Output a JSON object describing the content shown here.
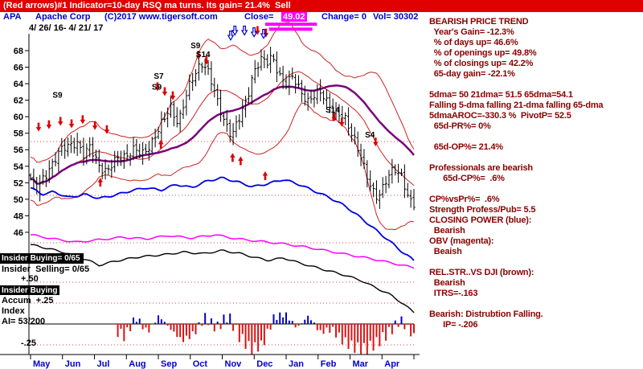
{
  "header": {
    "banner": "(Red arrows)#1 Indicator=10-day RSQ ma turns. Its gain= 21.4%  Sell",
    "ticker": "APA",
    "company": "Apache Corp",
    "copyright": "(C)2017 www.tigersoft.com",
    "close_label": "Close=",
    "close_value": "49.02",
    "change_text": "Change= 0",
    "volume_text": "Vol= 30302",
    "date_range": "4/ 26/ 16- 4/ 21/ 17"
  },
  "right_panel": {
    "lines": [
      "BEARISH PRICE TREND",
      "  Year's Gain= -12.3%",
      "  % of days up= 46.6%",
      "  % of openings up= 49.8%",
      "  % of closings up= 42.2%",
      "  65-day gain= -22.1%",
      "",
      "5dma= 50 21dma= 51.5 65dma=54.1",
      "Falling 5-dma falling 21-dma falling 65-dma",
      "5dmaAROC=-330.3 %  PivotP= 52.5",
      "  65d-PR%= 0%",
      "",
      "  65d-OP%= 21.4%",
      "",
      "Professionals are bearish",
      "      65d-CP%=  .6%",
      "",
      "CP%vsPr%=  .6%",
      "Strength Profess/Pub= 5.5",
      "CLOSING POWER (blue):",
      "  Bearish",
      "OBV (magenta):",
      "  Beaish",
      "",
      "REL.STR..VS DJI (brown):",
      "  Bearish",
      "  ITRS=-.163",
      "",
      "Bearish: Distrubtion Falling.",
      "      IP= -.206"
    ]
  },
  "left_overlays": {
    "insider_buying_bar": "Insider Buying= 0/65",
    "insider_selling": "Insider  Selling= 0/65",
    "plus50": "+.50",
    "insider_buying_label": "Insider Buying",
    "accum_plus25": "Accum  +.25",
    "index_label": "Index",
    "ai_value": "AI= 53/200",
    "minus25": "-.25"
  },
  "chart_data": {
    "type": "ohlc",
    "title": "APA Apache Corp daily OHLC 4/26/16-4/21/17 with 21/65-day moving averages, trading bands, Closing Power, OBV, Relative Strength and Accumulation Index",
    "ylim": [
      46,
      68
    ],
    "y_ticks": [
      68,
      66,
      64,
      62,
      60,
      58,
      56,
      54,
      52,
      50,
      48,
      46
    ],
    "months": [
      "May",
      "Jun",
      "Jul",
      "Aug",
      "Sep",
      "Oct",
      "Nov",
      "Dec",
      "Jan",
      "Feb",
      "Mar",
      "Apr"
    ],
    "last_close": 49.02,
    "price_weekly_close": [
      [
        0.0,
        52.5
      ],
      [
        0.015,
        50.9
      ],
      [
        0.05,
        54.0
      ],
      [
        0.075,
        55.6
      ],
      [
        0.1,
        56.5
      ],
      [
        0.12,
        57.2
      ],
      [
        0.14,
        55.1
      ],
      [
        0.155,
        56.2
      ],
      [
        0.18,
        54.2
      ],
      [
        0.2,
        53.3
      ],
      [
        0.23,
        55.0
      ],
      [
        0.27,
        56.0
      ],
      [
        0.29,
        55.2
      ],
      [
        0.31,
        56.6
      ],
      [
        0.33,
        58.2
      ],
      [
        0.35,
        59.6
      ],
      [
        0.365,
        61.2
      ],
      [
        0.385,
        59.4
      ],
      [
        0.4,
        61.6
      ],
      [
        0.415,
        63.6
      ],
      [
        0.43,
        65.2
      ],
      [
        0.445,
        66.8
      ],
      [
        0.46,
        66.0
      ],
      [
        0.475,
        63.6
      ],
      [
        0.49,
        61.2
      ],
      [
        0.51,
        59.2
      ],
      [
        0.525,
        57.9
      ],
      [
        0.545,
        59.6
      ],
      [
        0.565,
        62.2
      ],
      [
        0.58,
        65.4
      ],
      [
        0.6,
        67.0
      ],
      [
        0.615,
        66.2
      ],
      [
        0.63,
        67.3
      ],
      [
        0.65,
        65.2
      ],
      [
        0.665,
        63.9
      ],
      [
        0.685,
        64.6
      ],
      [
        0.705,
        63.2
      ],
      [
        0.725,
        61.9
      ],
      [
        0.745,
        62.6
      ],
      [
        0.76,
        62.8
      ],
      [
        0.78,
        61.6
      ],
      [
        0.8,
        60.2
      ],
      [
        0.82,
        59.6
      ],
      [
        0.845,
        57.5
      ],
      [
        0.86,
        55.5
      ],
      [
        0.875,
        52.8
      ],
      [
        0.89,
        51.0
      ],
      [
        0.905,
        50.4
      ],
      [
        0.93,
        52.6
      ],
      [
        0.95,
        53.4
      ],
      [
        0.97,
        52.8
      ],
      [
        0.985,
        50.5
      ],
      [
        1.0,
        49.0
      ]
    ],
    "closing_power": [
      [
        0.0,
        51.4
      ],
      [
        0.03,
        50.6
      ],
      [
        0.06,
        50.9
      ],
      [
        0.1,
        50.2
      ],
      [
        0.14,
        50.6
      ],
      [
        0.18,
        50.1
      ],
      [
        0.22,
        50.5
      ],
      [
        0.26,
        51.0
      ],
      [
        0.3,
        51.4
      ],
      [
        0.34,
        51.1
      ],
      [
        0.38,
        51.8
      ],
      [
        0.42,
        51.4
      ],
      [
        0.46,
        52.2
      ],
      [
        0.5,
        52.6
      ],
      [
        0.54,
        52.1
      ],
      [
        0.58,
        51.5
      ],
      [
        0.62,
        51.9
      ],
      [
        0.66,
        52.4
      ],
      [
        0.7,
        51.8
      ],
      [
        0.74,
        51.0
      ],
      [
        0.78,
        50.2
      ],
      [
        0.82,
        49.2
      ],
      [
        0.86,
        47.8
      ],
      [
        0.9,
        46.3
      ],
      [
        0.94,
        44.8
      ],
      [
        0.97,
        43.6
      ],
      [
        1.0,
        42.6
      ]
    ],
    "obv": [
      [
        0.0,
        45.7
      ],
      [
        0.06,
        45.2
      ],
      [
        0.12,
        44.8
      ],
      [
        0.18,
        45.1
      ],
      [
        0.24,
        45.4
      ],
      [
        0.3,
        45.2
      ],
      [
        0.36,
        45.6
      ],
      [
        0.42,
        45.3
      ],
      [
        0.48,
        45.7
      ],
      [
        0.54,
        45.2
      ],
      [
        0.6,
        44.9
      ],
      [
        0.66,
        44.6
      ],
      [
        0.72,
        44.2
      ],
      [
        0.78,
        43.7
      ],
      [
        0.84,
        43.2
      ],
      [
        0.9,
        42.7
      ],
      [
        0.95,
        42.2
      ],
      [
        1.0,
        41.7
      ]
    ],
    "rel_str": [
      [
        0.0,
        44.5
      ],
      [
        0.05,
        44.0
      ],
      [
        0.1,
        43.4
      ],
      [
        0.15,
        42.6
      ],
      [
        0.18,
        42.0
      ],
      [
        0.22,
        42.5
      ],
      [
        0.28,
        43.0
      ],
      [
        0.35,
        43.3
      ],
      [
        0.4,
        43.6
      ],
      [
        0.45,
        43.4
      ],
      [
        0.5,
        43.8
      ],
      [
        0.55,
        43.4
      ],
      [
        0.58,
        43.0
      ],
      [
        0.62,
        42.6
      ],
      [
        0.66,
        42.9
      ],
      [
        0.7,
        42.3
      ],
      [
        0.74,
        41.8
      ],
      [
        0.78,
        41.3
      ],
      [
        0.82,
        40.8
      ],
      [
        0.86,
        40.2
      ],
      [
        0.9,
        39.3
      ],
      [
        0.94,
        38.4
      ],
      [
        0.97,
        37.4
      ],
      [
        1.0,
        36.3
      ]
    ],
    "accum_index": [
      [
        0.215,
        -0.05
      ],
      [
        0.245,
        -0.15
      ],
      [
        0.275,
        0.08
      ],
      [
        0.305,
        -0.1
      ],
      [
        0.335,
        0.1
      ],
      [
        0.365,
        -0.06
      ],
      [
        0.395,
        -0.2
      ],
      [
        0.425,
        -0.12
      ],
      [
        0.455,
        0.08
      ],
      [
        0.485,
        -0.05
      ],
      [
        0.515,
        0.1
      ],
      [
        0.545,
        -0.15
      ],
      [
        0.575,
        -0.3
      ],
      [
        0.605,
        -0.25
      ],
      [
        0.635,
        0.08
      ],
      [
        0.665,
        0.12
      ],
      [
        0.695,
        -0.05
      ],
      [
        0.725,
        0.1
      ],
      [
        0.755,
        -0.1
      ],
      [
        0.785,
        -0.06
      ],
      [
        0.815,
        -0.2
      ],
      [
        0.845,
        -0.28
      ],
      [
        0.875,
        -0.3
      ],
      [
        0.905,
        -0.22
      ],
      [
        0.935,
        -0.1
      ],
      [
        0.965,
        0.05
      ],
      [
        1.0,
        -0.15
      ]
    ],
    "ref_lines_y": [
      176,
      243,
      302,
      351,
      377,
      429
    ],
    "signals": {
      "sell_arrows": [
        [
          0.021,
          58.2
        ],
        [
          0.048,
          58.5
        ],
        [
          0.078,
          58.9
        ],
        [
          0.107,
          58.6
        ],
        [
          0.136,
          59.1
        ],
        [
          0.168,
          58.4
        ],
        [
          0.199,
          57.9
        ],
        [
          0.331,
          63.1
        ],
        [
          0.35,
          62.5
        ],
        [
          0.371,
          62.0
        ],
        [
          0.438,
          66.9
        ],
        [
          0.459,
          66.3
        ],
        [
          0.592,
          69.9
        ],
        [
          0.614,
          69.6
        ],
        [
          0.792,
          59.4
        ],
        [
          0.812,
          58.8
        ],
        [
          0.9,
          56.4
        ]
      ],
      "buy_arrows": [
        [
          0.182,
          52.6
        ],
        [
          0.34,
          57.2
        ],
        [
          0.527,
          55.6
        ],
        [
          0.548,
          55.2
        ],
        [
          0.612,
          53.4
        ]
      ],
      "blue_resistance_arrows": [
        [
          0.522,
          69.3
        ],
        [
          0.533,
          69.9
        ],
        [
          0.558,
          69.9
        ],
        [
          0.583,
          69.7
        ],
        [
          0.608,
          69.5
        ]
      ],
      "labels": [
        {
          "text": "S9",
          "f": 0.07,
          "price": 62.3
        },
        {
          "text": "S7",
          "f": 0.334,
          "price": 64.6
        },
        {
          "text": "S9",
          "f": 0.329,
          "price": 63.3
        },
        {
          "text": "S9",
          "f": 0.43,
          "price": 68.3
        },
        {
          "text": "S14",
          "f": 0.444,
          "price": 67.2
        },
        {
          "text": "S14",
          "f": 0.782,
          "price": 60.5
        },
        {
          "text": "S4",
          "f": 0.885,
          "price": 57.5
        }
      ]
    },
    "resistance_bars": [
      {
        "f1": 0.612,
        "f2": 0.747,
        "price": 71.2
      },
      {
        "f1": 0.622,
        "f2": 0.735,
        "price": 70.6
      }
    ],
    "colors": {
      "down_arrow": "#DD0000",
      "up_arrow": "#DD0000",
      "blue_arrow": "#0000E8",
      "candle": "#000000",
      "ma_fast": "#CC2222",
      "ma_slow": "#7A007A",
      "band": "#CC2222",
      "closing_power": "#0000E0",
      "obv": "#FF00FF",
      "rel_str": "#000000",
      "hist_pos": "#0000CC",
      "hist_neg": "#DD1111",
      "month_label": "#0000CC",
      "banner_bg": "#E00000",
      "panel_text": "#8B0000"
    }
  }
}
